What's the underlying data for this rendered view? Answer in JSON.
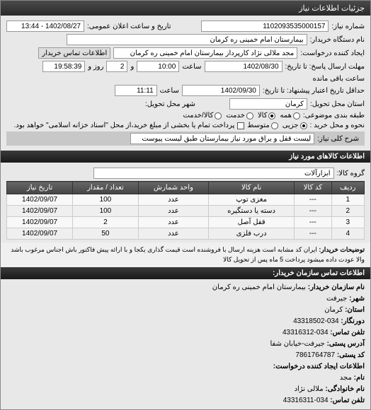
{
  "titlebar": "جزئیات اطلاعات نیاز",
  "header": {
    "request_no_label": "شماره نیاز:",
    "request_no": "1102093535000157",
    "announce_label": "تاریخ و ساعت اعلان عمومی:",
    "announce_value": "1402/08/27 - 13:44",
    "buyer_org_label": "نام دستگاه خریدار:",
    "buyer_org": "بیمارستان امام خمینی ره کرمان",
    "creator_label": "ایجاد کننده درخواست:",
    "creator": "مجد ملالی نژاد کارپرداز بیمارستان امام خمینی ره کرمان",
    "contact_btn": "اطلاعات تماس خریدار"
  },
  "deadlines": {
    "reply_deadline_label": "مهلت ارسال پاسخ: تا تاریخ:",
    "reply_date": "1402/08/30",
    "reply_time_label": "ساعت",
    "reply_time": "10:00",
    "days_label": "و",
    "days": "2",
    "days_suffix": "روز و",
    "hours": "19:58:39",
    "hours_suffix": "ساعت باقی مانده",
    "validity_label": "حداقل تاریخ اعتبار پیشنهاد: تا تاریخ:",
    "validity_date": "1402/09/30",
    "validity_time_label": "ساعت",
    "validity_time": "11:11",
    "delivery_province_label": "استان محل تحویل:",
    "delivery_province": "کرمان",
    "delivery_city_label": "شهر محل تحویل:"
  },
  "classification": {
    "subject_class_label": "طبقه بندی موضوعی:",
    "opt_all": "همه",
    "opt_goods": "کالا",
    "opt_service": "خدمت",
    "opt_goods_service": "کالا/خدمت",
    "purchase_type_label": "نحوه و محل خرید :",
    "opt_minor": "جزیی",
    "opt_medium": "متوسط",
    "purchase_note": "پرداخت تمام یا بخشی از مبلغ خرید،از محل \"اسناد خزانه اسلامی\" خواهد بود.",
    "need_desc_label": "شرح کلی نیاز:",
    "need_desc": "لیست قفل و یراق مورد نیاز بیمارستان طبق لیست پیوست"
  },
  "items_header": "اطلاعات کالاهای مورد نیاز",
  "group_label": "گروه کالا:",
  "group_value": "ابزارآلات",
  "table": {
    "headers": [
      "ردیف",
      "کد کالا",
      "نام کالا",
      "واحد شمارش",
      "تعداد / مقدار",
      "تاریخ نیاز"
    ],
    "rows": [
      [
        "1",
        "---",
        "مغزی توپ",
        "عدد",
        "100",
        "1402/09/07"
      ],
      [
        "2",
        "---",
        "دسته یا دستگیره",
        "عدد",
        "100",
        "1402/09/07"
      ],
      [
        "3",
        "---",
        "قفل آصل",
        "عدد",
        "2",
        "1402/09/07"
      ],
      [
        "4",
        "---",
        "درب فلزی",
        "عدد",
        "50",
        "1402/09/07"
      ]
    ]
  },
  "notes": {
    "label": "توضیحات خریدار:",
    "text": "ایران کد مشابه است هزینه ارسال با فروشنده است قیمت گذاری یکجا و با ارائه پیش فاکتور باش اجناس مرغوب باشد والا عودت داده میشود پرداخت 5 ماه پس از تحویل کالا"
  },
  "contact": {
    "header": "اطلاعات تماس سازمان خریدار:",
    "org_label": "نام سازمان خریدار:",
    "org": "بیمارستان امام خمینی ره کرمان",
    "city_label": "شهر:",
    "city": "جیرفت",
    "province_label": "استان:",
    "province": "کرمان",
    "fax_label": "دورنگار:",
    "fax": "034-43318502",
    "phone_label": "تلفن تماس:",
    "phone": "034-43316312",
    "address_label": "آدرس پستی:",
    "address": "جیرفت-خیابان شفا",
    "postal_label": "کد پستی:",
    "postal": "7861764787",
    "creator_header": "اطلاعات ایجاد کننده درخواست:",
    "fname_label": "نام:",
    "fname": "مجد",
    "lname_label": "نام خانوادگی:",
    "lname": "ملالی نژاد",
    "creator_phone_label": "تلفن تماس:",
    "creator_phone": "034-43316311"
  }
}
